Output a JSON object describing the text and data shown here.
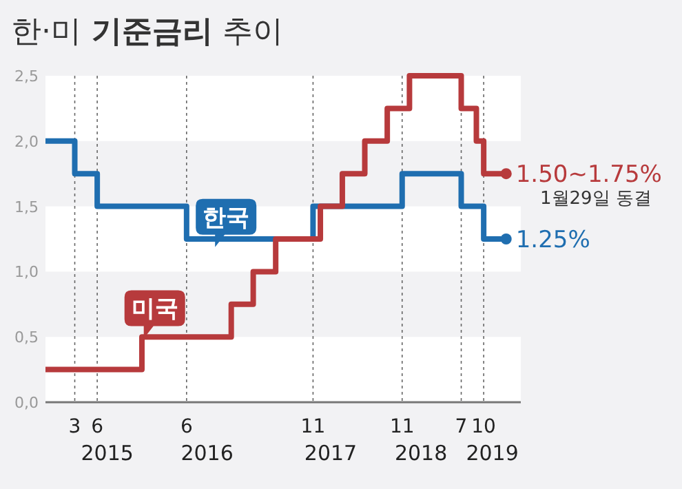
{
  "chart_data": {
    "type": "step",
    "title": "한·미 기준금리 추이",
    "xlim": [
      "2014-11",
      "2020-03"
    ],
    "xticks": [
      {
        "value": "2015-03",
        "label": "3"
      },
      {
        "value": "2015-06",
        "label": "6"
      },
      {
        "value": "2016-06",
        "label": "6"
      },
      {
        "value": "2017-11",
        "label": "11"
      },
      {
        "value": "2018-11",
        "label": "11"
      },
      {
        "value": "2019-07",
        "label": "7"
      },
      {
        "value": "2019-10",
        "label": "10"
      }
    ],
    "ylim": [
      0,
      2.5
    ],
    "yticks": [
      {
        "value": 0,
        "label": "0,0"
      },
      {
        "value": 0.5,
        "label": "0,5"
      },
      {
        "value": 1,
        "label": "1,0"
      },
      {
        "value": 1.5,
        "label": "1,5"
      },
      {
        "value": 2,
        "label": "2,0"
      },
      {
        "value": 2.5,
        "label": "2,5"
      }
    ],
    "grid": "x",
    "line_style": "solid",
    "marker": "none",
    "bands": [
      {
        "axis": "y",
        "from": 0,
        "to": 0.5,
        "color": "#ffffff"
      },
      {
        "axis": "y",
        "from": 1,
        "to": 1.5,
        "color": "#ffffff"
      },
      {
        "axis": "y",
        "from": 2,
        "to": 2.5,
        "color": "#ffffff"
      }
    ],
    "series": [
      {
        "name": "한국",
        "color": "#1f6eb0",
        "x": [
          "2014-11",
          "2015-03",
          "2015-06",
          "2016-06",
          "2017-11",
          "2018-11",
          "2019-07",
          "2019-10",
          "2020-01"
        ],
        "values": [
          2.0,
          1.75,
          1.5,
          1.25,
          1.5,
          1.75,
          1.5,
          1.25,
          1.25
        ]
      },
      {
        "name": "미국",
        "color": "#b73a3c",
        "x": [
          "2014-11",
          "2015-12",
          "2016-12",
          "2017-03",
          "2017-06",
          "2017-12",
          "2018-03",
          "2018-06",
          "2018-09",
          "2018-12",
          "2019-07",
          "2019-09",
          "2019-10",
          "2020-01"
        ],
        "values": [
          0.25,
          0.5,
          0.75,
          1.0,
          1.25,
          1.5,
          1.75,
          2.0,
          2.25,
          2.5,
          2.25,
          2.0,
          1.75,
          1.75
        ]
      }
    ],
    "annotations": [
      {
        "text": "1.50~1.75%",
        "x": "2020-01",
        "y": 1.75
      },
      "1월29일 동결",
      {
        "text": "1.25%",
        "x": "2020-01",
        "y": 1.25
      },
      "2015",
      "2016",
      "2017",
      "2018",
      "2019"
    ]
  }
}
